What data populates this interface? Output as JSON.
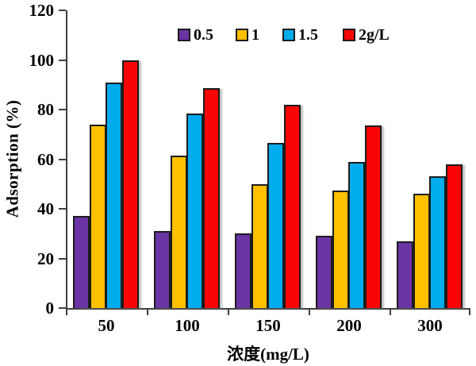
{
  "chart_data": {
    "type": "bar",
    "title": "",
    "xlabel": "浓度(mg/L)",
    "ylabel": "Adsorption (%)",
    "categories": [
      "50",
      "100",
      "150",
      "200",
      "300"
    ],
    "series": [
      {
        "name": "0.5",
        "color": "#6B34A5",
        "values": [
          37,
          31,
          30,
          29,
          27
        ]
      },
      {
        "name": "1",
        "color": "#FFC000",
        "values": [
          74,
          61.5,
          50,
          47.5,
          46
        ]
      },
      {
        "name": "1.5",
        "color": "#00ACEC",
        "values": [
          91,
          78.5,
          66.5,
          59,
          53
        ]
      },
      {
        "name": "2g/L",
        "color": "#FA0505",
        "values": [
          100,
          88.5,
          82,
          73.5,
          58
        ]
      }
    ],
    "ylim": [
      0,
      120
    ],
    "yticks": [
      0,
      20,
      40,
      60,
      80,
      100,
      120
    ],
    "grid": false,
    "legend_position": "top-inside",
    "axis_color": "#3f3f3f",
    "bar_outline_color": "#1c1c1c"
  }
}
